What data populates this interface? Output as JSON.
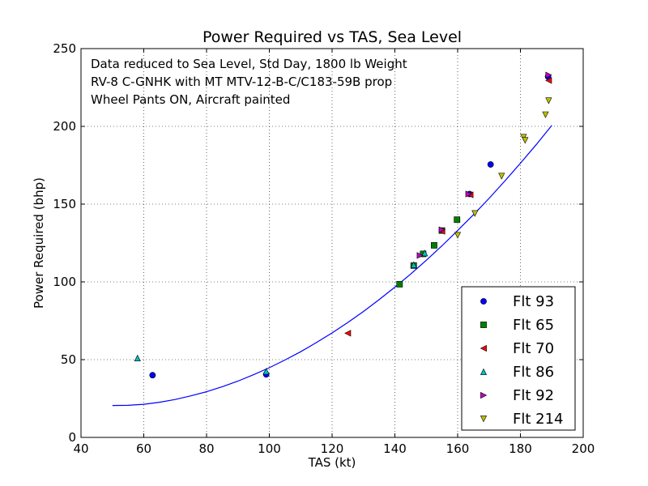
{
  "chart_data": {
    "type": "scatter",
    "title": "Power Required vs TAS, Sea Level",
    "xlabel": "TAS (kt)",
    "ylabel": "Power Required (bhp)",
    "xlim": [
      40,
      200
    ],
    "ylim": [
      0,
      250
    ],
    "xticks": [
      40,
      60,
      80,
      100,
      120,
      140,
      160,
      180,
      200
    ],
    "yticks": [
      0,
      50,
      100,
      150,
      200,
      250
    ],
    "grid": true,
    "legend_position": "lower-right",
    "annotations": [
      "Data reduced to Sea Level, Std Day, 1800 lb Weight",
      "RV-8 C-GNHK with MT MTV-12-B-C/C183-59B prop",
      "Wheel Pants ON, Aircraft painted"
    ],
    "series": [
      {
        "name": "Flt 93",
        "marker": "circle",
        "color": "#0000ff",
        "points": [
          [
            62.8,
            40.0
          ],
          [
            99.0,
            40.5
          ],
          [
            163.8,
            156.5
          ],
          [
            170.5,
            175.5
          ],
          [
            188.8,
            232.0
          ]
        ]
      },
      {
        "name": "Flt 65",
        "marker": "square",
        "color": "#008000",
        "points": [
          [
            141.5,
            98.5
          ],
          [
            146.0,
            110.5
          ],
          [
            149.0,
            118.0
          ],
          [
            152.5,
            123.5
          ],
          [
            155.0,
            133.0
          ],
          [
            159.8,
            140.0
          ]
        ]
      },
      {
        "name": "Flt 70",
        "marker": "triangle-left",
        "color": "#ff0000",
        "points": [
          [
            125.0,
            67.0
          ],
          [
            155.0,
            132.5
          ],
          [
            164.0,
            156.0
          ],
          [
            189.0,
            229.5
          ]
        ]
      },
      {
        "name": "Flt 86",
        "marker": "triangle-up",
        "color": "#00bfbf",
        "points": [
          [
            58.0,
            51.0
          ],
          [
            99.0,
            42.5
          ],
          [
            146.0,
            111.0
          ],
          [
            149.5,
            118.5
          ]
        ]
      },
      {
        "name": "Flt 92",
        "marker": "triangle-right",
        "color": "#bf00bf",
        "points": [
          [
            148.0,
            117.0
          ],
          [
            155.0,
            133.5
          ],
          [
            163.5,
            156.5
          ],
          [
            189.0,
            233.0
          ]
        ]
      },
      {
        "name": "Flt 214",
        "marker": "triangle-down",
        "color": "#bfbf00",
        "points": [
          [
            160.0,
            130.0
          ],
          [
            165.5,
            144.0
          ],
          [
            174.0,
            168.0
          ],
          [
            181.0,
            193.0
          ],
          [
            181.5,
            191.0
          ],
          [
            188.0,
            207.5
          ],
          [
            189.0,
            216.5
          ]
        ]
      }
    ],
    "fit_curve": {
      "color": "#0000ff",
      "x_range": [
        50,
        190
      ],
      "points": [
        [
          50,
          20.5
        ],
        [
          55,
          20.6
        ],
        [
          60,
          21.3
        ],
        [
          65,
          22.6
        ],
        [
          70,
          24.4
        ],
        [
          75,
          26.7
        ],
        [
          80,
          29.4
        ],
        [
          85,
          32.6
        ],
        [
          90,
          36.2
        ],
        [
          95,
          40.3
        ],
        [
          100,
          44.8
        ],
        [
          105,
          49.8
        ],
        [
          110,
          55.1
        ],
        [
          115,
          61.0
        ],
        [
          120,
          67.2
        ],
        [
          125,
          73.9
        ],
        [
          130,
          81.0
        ],
        [
          135,
          88.6
        ],
        [
          140,
          96.6
        ],
        [
          145,
          105.0
        ],
        [
          150,
          113.9
        ],
        [
          155,
          123.2
        ],
        [
          160,
          133.0
        ],
        [
          165,
          143.1
        ],
        [
          170,
          153.7
        ],
        [
          175,
          164.8
        ],
        [
          180,
          176.3
        ],
        [
          185,
          188.2
        ],
        [
          190,
          200.6
        ]
      ]
    }
  }
}
